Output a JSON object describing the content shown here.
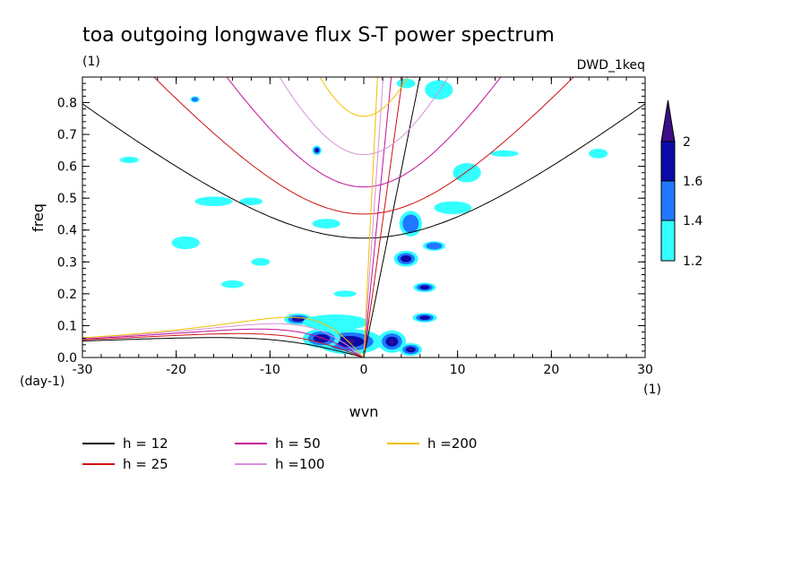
{
  "chart_data": {
    "type": "contour",
    "title": "toa outgoing longwave flux S-T power spectrum",
    "title_units": "(1)",
    "subtitle_right": "DWD_1keq",
    "xlabel": "wvn",
    "ylabel": "freq",
    "x_units": "(1)",
    "y_units": "(day-1)",
    "xlim": [
      -30,
      30
    ],
    "ylim": [
      0,
      0.88
    ],
    "x_ticks": [
      -30,
      -20,
      -10,
      0,
      10,
      20,
      30
    ],
    "x_tick_labels": [
      "-30",
      "-20",
      "-10",
      "0",
      "10",
      "20",
      "30"
    ],
    "y_ticks": [
      0.0,
      0.1,
      0.2,
      0.3,
      0.4,
      0.5,
      0.6,
      0.7,
      0.8
    ],
    "y_tick_labels": [
      "0.0",
      "0.1",
      "0.2",
      "0.3",
      "0.4",
      "0.5",
      "0.6",
      "0.7",
      "0.8"
    ],
    "colorbar": {
      "levels": [
        1.2,
        1.4,
        1.6,
        2
      ],
      "labels": [
        "1.2",
        "1.4",
        "1.6",
        "2"
      ],
      "colors": [
        "#33ffff",
        "#1f78ff",
        "#0a0aa8",
        "#3c0e86"
      ]
    },
    "dispersion_curves": [
      {
        "label": "h = 12",
        "h": 12,
        "color": "#000000"
      },
      {
        "label": "h = 25",
        "h": 25,
        "color": "#d01010"
      },
      {
        "label": "h = 50",
        "h": 50,
        "color": "#c0109c"
      },
      {
        "label": "h =100",
        "h": 100,
        "color": "#d890dc"
      },
      {
        "label": "h =200",
        "h": 200,
        "color": "#f0c000"
      }
    ],
    "contour_patches": [
      {
        "x": -1.5,
        "y": 0.05,
        "rx": 3.5,
        "ry": 0.04,
        "level": 2
      },
      {
        "x": -4.5,
        "y": 0.06,
        "rx": 2.0,
        "ry": 0.03,
        "level": 2
      },
      {
        "x": -7.0,
        "y": 0.12,
        "rx": 1.5,
        "ry": 0.018,
        "level": 2
      },
      {
        "x": -3.0,
        "y": 0.11,
        "rx": 3.5,
        "ry": 0.025,
        "level": 1.2
      },
      {
        "x": 3.0,
        "y": 0.05,
        "rx": 1.5,
        "ry": 0.035,
        "level": 2
      },
      {
        "x": 5.0,
        "y": 0.025,
        "rx": 1.2,
        "ry": 0.02,
        "level": 2
      },
      {
        "x": 6.5,
        "y": 0.125,
        "rx": 1.3,
        "ry": 0.015,
        "level": 1.6
      },
      {
        "x": 6.5,
        "y": 0.22,
        "rx": 1.2,
        "ry": 0.015,
        "level": 1.6
      },
      {
        "x": 4.5,
        "y": 0.31,
        "rx": 1.3,
        "ry": 0.025,
        "level": 1.6
      },
      {
        "x": 7.5,
        "y": 0.35,
        "rx": 1.2,
        "ry": 0.015,
        "level": 1.4
      },
      {
        "x": 5.0,
        "y": 0.42,
        "rx": 1.2,
        "ry": 0.04,
        "level": 1.4
      },
      {
        "x": 9.5,
        "y": 0.47,
        "rx": 2.0,
        "ry": 0.02,
        "level": 1.2
      },
      {
        "x": 11.0,
        "y": 0.58,
        "rx": 1.5,
        "ry": 0.03,
        "level": 1.2
      },
      {
        "x": 8.0,
        "y": 0.84,
        "rx": 1.5,
        "ry": 0.03,
        "level": 1.2
      },
      {
        "x": 4.5,
        "y": 0.86,
        "rx": 1.0,
        "ry": 0.015,
        "level": 1.2
      },
      {
        "x": -5.0,
        "y": 0.65,
        "rx": 0.5,
        "ry": 0.015,
        "level": 1.6
      },
      {
        "x": -16.0,
        "y": 0.49,
        "rx": 2.0,
        "ry": 0.015,
        "level": 1.2
      },
      {
        "x": -12.0,
        "y": 0.49,
        "rx": 1.2,
        "ry": 0.012,
        "level": 1.2
      },
      {
        "x": -19.0,
        "y": 0.36,
        "rx": 1.5,
        "ry": 0.02,
        "level": 1.2
      },
      {
        "x": -14.0,
        "y": 0.23,
        "rx": 1.2,
        "ry": 0.012,
        "level": 1.2
      },
      {
        "x": -4.0,
        "y": 0.42,
        "rx": 1.5,
        "ry": 0.015,
        "level": 1.2
      },
      {
        "x": -25.0,
        "y": 0.62,
        "rx": 1.0,
        "ry": 0.01,
        "level": 1.2
      },
      {
        "x": -18.0,
        "y": 0.81,
        "rx": 0.5,
        "ry": 0.01,
        "level": 1.4
      },
      {
        "x": 15.0,
        "y": 0.64,
        "rx": 1.5,
        "ry": 0.01,
        "level": 1.2
      },
      {
        "x": 25.0,
        "y": 0.64,
        "rx": 1.0,
        "ry": 0.015,
        "level": 1.2
      },
      {
        "x": -11.0,
        "y": 0.3,
        "rx": 1.0,
        "ry": 0.012,
        "level": 1.2
      },
      {
        "x": -2.0,
        "y": 0.2,
        "rx": 1.2,
        "ry": 0.01,
        "level": 1.2
      }
    ]
  }
}
